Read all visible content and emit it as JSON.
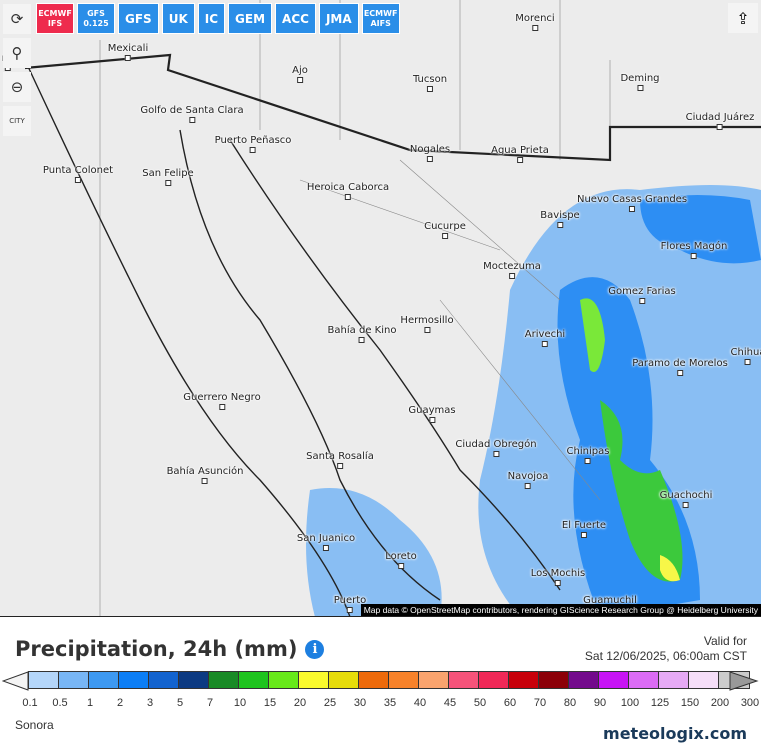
{
  "toolbar": {
    "models": [
      {
        "label": "ECMWF IFS",
        "active": true,
        "small": true
      },
      {
        "label": "GFS 0.125",
        "small": true
      },
      {
        "label": "GFS"
      },
      {
        "label": "UK"
      },
      {
        "label": "IC"
      },
      {
        "label": "GEM"
      },
      {
        "label": "ACC"
      },
      {
        "label": "JMA"
      },
      {
        "label": "ECMWF AIFS",
        "small": true
      }
    ],
    "tools": [
      {
        "name": "refresh-icon",
        "glyph": "⟳"
      },
      {
        "name": "location-pin-icon",
        "glyph": "⚲"
      },
      {
        "name": "zoom-out-icon",
        "glyph": "⊖"
      },
      {
        "name": "city-toggle-icon",
        "glyph": "CITY"
      }
    ],
    "share_icon": "share-icon"
  },
  "map": {
    "cities": [
      "na",
      "Mexicali",
      "Ajo",
      "Tucson",
      "Morenci",
      "Deming",
      "Ciudad Juárez",
      "Golfo de Santa Clara",
      "Puerto Peñasco",
      "Nogales",
      "Agua Prieta",
      "Punta Colonet",
      "San Felipe",
      "Heroica Caborca",
      "Bavispe",
      "Nuevo Casas Grandes",
      "Cucurpe",
      "Flores Magón",
      "Moctezuma",
      "Gomez Farias",
      "Hermosillo",
      "Bahía de Kino",
      "Arivechi",
      "Chihua",
      "Paramo de Morelos",
      "Guerrero Negro",
      "Guaymas",
      "Ciudad Obregón",
      "Chinipas",
      "Santa Rosalía",
      "Bahía Asunción",
      "Navojoa",
      "Guachochi",
      "El Fuerte",
      "San Juanico",
      "Loreto",
      "Los Mochis",
      "Puerto",
      "Guamuchil"
    ],
    "attribution": "Map data © OpenStreetMap contributors, rendering GIScience Research Group @ Heidelberg University"
  },
  "legend": {
    "title": "Precipitation, 24h (mm)",
    "info_icon": "info-icon",
    "valid_label": "Valid for",
    "valid_time": "Sat 12/06/2025, 06:00am CST",
    "colors": [
      "#b4d6fa",
      "#78b6f5",
      "#3d99f2",
      "#0c7ef5",
      "#1263cf",
      "#0c3a82",
      "#198a26",
      "#1ec41e",
      "#67e81a",
      "#fafa2c",
      "#e6dc0a",
      "#ee6a0a",
      "#f7822a",
      "#faa46e",
      "#f5537a",
      "#f02857",
      "#c8000a",
      "#8c0008",
      "#730a8c",
      "#c814f5",
      "#dc6cf5",
      "#e6aaf5",
      "#f5def8",
      "#cccccc"
    ],
    "ticks": [
      "0.1",
      "0.5",
      "1",
      "2",
      "3",
      "5",
      "7",
      "10",
      "15",
      "20",
      "25",
      "30",
      "35",
      "40",
      "45",
      "50",
      "60",
      "70",
      "80",
      "90",
      "100",
      "125",
      "150",
      "200",
      "300"
    ],
    "region": "Sonora",
    "logo": "meteologix.com"
  }
}
